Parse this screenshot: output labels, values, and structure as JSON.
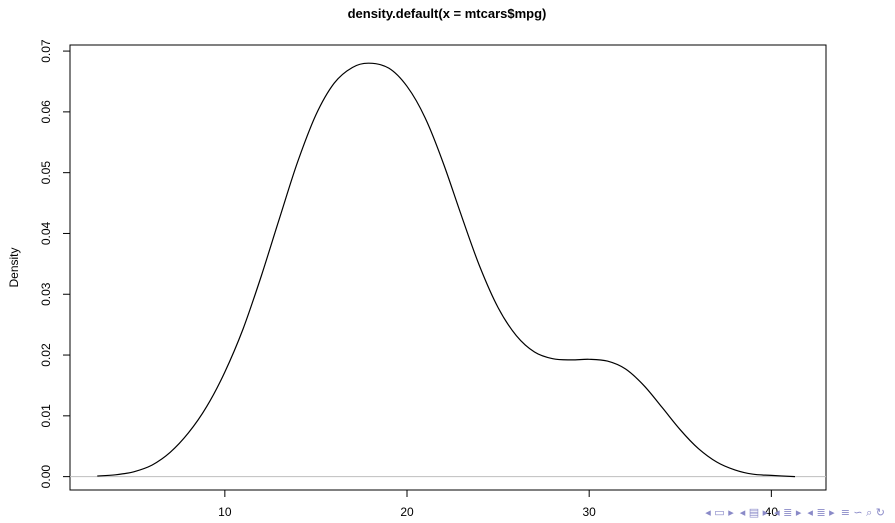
{
  "chart_data": {
    "type": "line",
    "title": "density.default(x = mtcars$mpg)",
    "xlabel": "",
    "ylabel": "Density",
    "xlim": [
      1.5,
      43.0
    ],
    "ylim": [
      -0.0022,
      0.071
    ],
    "x_ticks": [
      10,
      20,
      30,
      40
    ],
    "y_ticks": [
      0.0,
      0.01,
      0.02,
      0.03,
      0.04,
      0.05,
      0.06,
      0.07
    ],
    "y_tick_labels": [
      "0.00",
      "0.01",
      "0.02",
      "0.03",
      "0.04",
      "0.05",
      "0.06",
      "0.07"
    ],
    "baseline": 0,
    "series": [
      {
        "x": [
          3.0,
          4.0,
          5.0,
          6.0,
          7.0,
          8.0,
          9.0,
          10.0,
          11.0,
          12.0,
          13.0,
          14.0,
          15.0,
          16.0,
          17.0,
          17.9,
          19.0,
          20.0,
          21.0,
          22.0,
          23.0,
          24.0,
          25.0,
          26.0,
          27.0,
          28.0,
          29.0,
          30.0,
          31.0,
          32.0,
          33.0,
          34.0,
          35.0,
          36.0,
          37.0,
          38.0,
          39.0,
          40.0,
          41.3
        ],
        "y": [
          0.0001,
          0.0003,
          0.0008,
          0.0019,
          0.004,
          0.0072,
          0.0115,
          0.0172,
          0.0243,
          0.033,
          0.0425,
          0.0518,
          0.0595,
          0.0647,
          0.0673,
          0.068,
          0.0672,
          0.0642,
          0.059,
          0.0515,
          0.0428,
          0.0345,
          0.0278,
          0.0232,
          0.0205,
          0.0194,
          0.0192,
          0.0193,
          0.019,
          0.0177,
          0.015,
          0.0114,
          0.0077,
          0.0046,
          0.0024,
          0.0011,
          0.0004,
          0.0002,
          0.0
        ]
      }
    ],
    "grid": false,
    "colors": {
      "line": "#000000",
      "baseline": "#bebebe",
      "axis": "#000000"
    }
  },
  "nav_icons": [
    "beamer-slide-nav-icon",
    "beamer-frame-nav-icon",
    "beamer-section-nav-icon",
    "beamer-subsection-nav-icon",
    "beamer-search-icon"
  ]
}
